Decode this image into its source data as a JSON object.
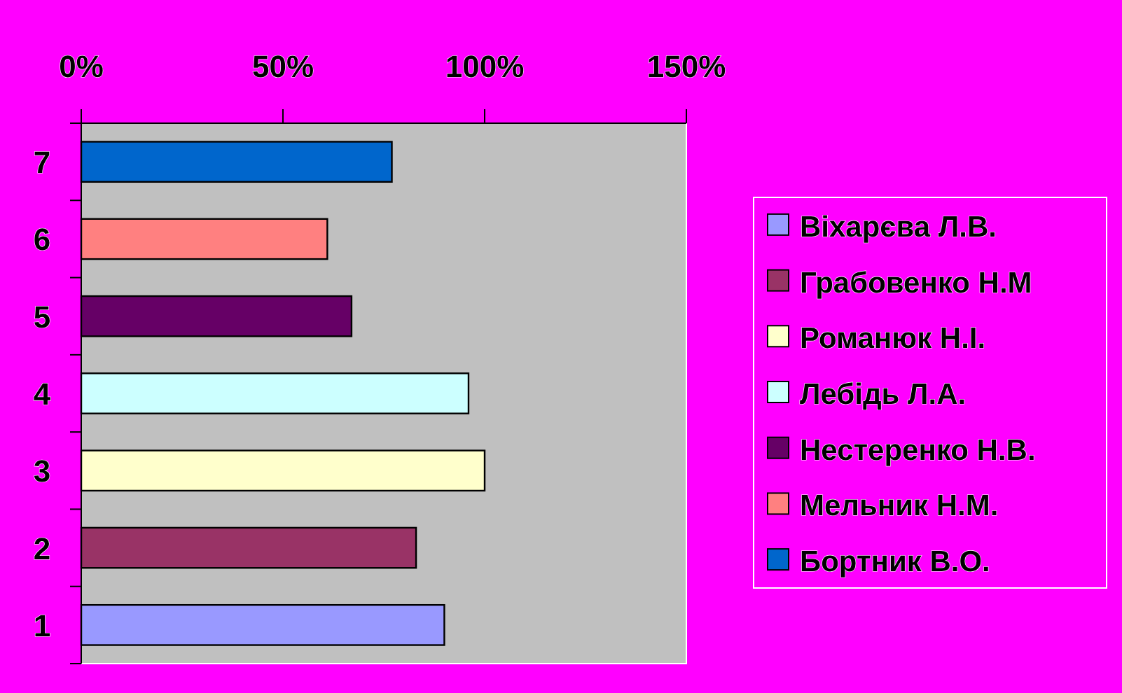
{
  "chart_data": {
    "type": "bar",
    "orientation": "horizontal",
    "categories": [
      "7",
      "6",
      "5",
      "4",
      "3",
      "2",
      "1"
    ],
    "series": [
      {
        "name": "Віхарєва Л.В.",
        "color": "#9999ff",
        "values": [
          null,
          null,
          null,
          null,
          null,
          null,
          90
        ]
      },
      {
        "name": "Грабовенко Н.М",
        "color": "#993366",
        "values": [
          null,
          null,
          null,
          null,
          null,
          83,
          null
        ]
      },
      {
        "name": "Романюк Н.І.",
        "color": "#ffffcc",
        "values": [
          null,
          null,
          null,
          null,
          100,
          null,
          null
        ]
      },
      {
        "name": "Лебідь Л.А.",
        "color": "#ccffff",
        "values": [
          null,
          null,
          null,
          96,
          null,
          null,
          null
        ]
      },
      {
        "name": "Нестеренко Н.В.",
        "color": "#660066",
        "values": [
          null,
          null,
          67,
          null,
          null,
          null,
          null
        ]
      },
      {
        "name": "Мельник Н.М.",
        "color": "#ff8080",
        "values": [
          null,
          61,
          null,
          null,
          null,
          null,
          null
        ]
      },
      {
        "name": "Бортник В.О.",
        "color": "#0066cc",
        "values": [
          77,
          null,
          null,
          null,
          null,
          null,
          null
        ]
      }
    ],
    "xlim": [
      0,
      150
    ],
    "xticks": [
      {
        "value": 0,
        "label": "0%"
      },
      {
        "value": 50,
        "label": "50%"
      },
      {
        "value": 100,
        "label": "100%"
      },
      {
        "value": 150,
        "label": "150%"
      }
    ],
    "grid": false,
    "legend": "right"
  }
}
